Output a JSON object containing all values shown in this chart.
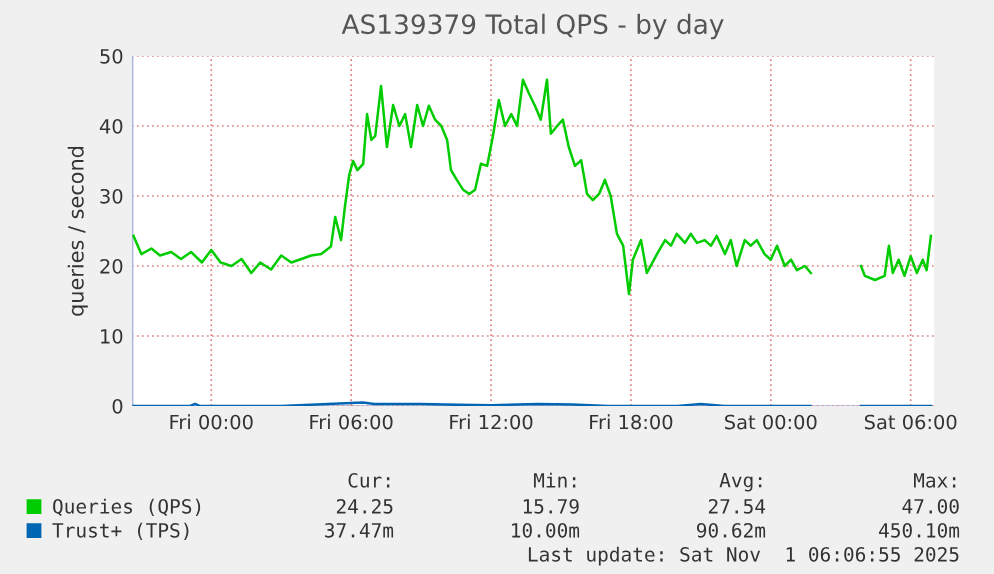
{
  "chart_data": {
    "type": "line",
    "title": "AS139379 Total QPS - by day",
    "ylabel": "queries / second",
    "xlim": [
      "2025-10-30T20:36",
      "2025-11-01T07:00"
    ],
    "xticks": [
      {
        "value": "2025-10-31T00:00",
        "label": "Fri 00:00"
      },
      {
        "value": "2025-10-31T06:00",
        "label": "Fri 06:00"
      },
      {
        "value": "2025-10-31T12:00",
        "label": "Fri 12:00"
      },
      {
        "value": "2025-10-31T18:00",
        "label": "Fri 18:00"
      },
      {
        "value": "2025-11-01T00:00",
        "label": "Sat 00:00"
      },
      {
        "value": "2025-11-01T06:00",
        "label": "Sat 06:00"
      }
    ],
    "ylim": [
      0,
      50
    ],
    "yticks": [
      0,
      10,
      20,
      30,
      40,
      50
    ],
    "grid": true,
    "legend": "bottom",
    "series": [
      {
        "name": "Queries (QPS)",
        "color": "#00cc00",
        "x": [
          "2025-10-30T20:40",
          "2025-10-30T21:00",
          "2025-10-30T21:26",
          "2025-10-30T21:48",
          "2025-10-30T22:17",
          "2025-10-30T22:42",
          "2025-10-30T23:08",
          "2025-10-30T23:36",
          "2025-10-31T00:00",
          "2025-10-31T00:24",
          "2025-10-31T00:52",
          "2025-10-31T01:18",
          "2025-10-31T01:43",
          "2025-10-31T02:06",
          "2025-10-31T02:34",
          "2025-10-31T03:00",
          "2025-10-31T03:26",
          "2025-10-31T03:52",
          "2025-10-31T04:17",
          "2025-10-31T04:43",
          "2025-10-31T05:08",
          "2025-10-31T05:19",
          "2025-10-31T05:34",
          "2025-10-31T05:44",
          "2025-10-31T05:55",
          "2025-10-31T06:05",
          "2025-10-31T06:16",
          "2025-10-31T06:31",
          "2025-10-31T06:41",
          "2025-10-31T06:52",
          "2025-10-31T07:02",
          "2025-10-31T07:17",
          "2025-10-31T07:32",
          "2025-10-31T07:48",
          "2025-10-31T08:04",
          "2025-10-31T08:19",
          "2025-10-31T08:34",
          "2025-10-31T08:50",
          "2025-10-31T09:05",
          "2025-10-31T09:20",
          "2025-10-31T09:36",
          "2025-10-31T09:52",
          "2025-10-31T10:07",
          "2025-10-31T10:17",
          "2025-10-31T10:32",
          "2025-10-31T10:48",
          "2025-10-31T11:04",
          "2025-10-31T11:19",
          "2025-10-31T11:34",
          "2025-10-31T11:50",
          "2025-10-31T12:05",
          "2025-10-31T12:20",
          "2025-10-31T12:36",
          "2025-10-31T12:52",
          "2025-10-31T13:07",
          "2025-10-31T13:22",
          "2025-10-31T13:38",
          "2025-10-31T13:53",
          "2025-10-31T14:08",
          "2025-10-31T14:24",
          "2025-10-31T14:34",
          "2025-10-31T14:50",
          "2025-10-31T15:05",
          "2025-10-31T15:20",
          "2025-10-31T15:36",
          "2025-10-31T15:52",
          "2025-10-31T16:07",
          "2025-10-31T16:22",
          "2025-10-31T16:38",
          "2025-10-31T16:53",
          "2025-10-31T17:08",
          "2025-10-31T17:24",
          "2025-10-31T17:40",
          "2025-10-31T17:55",
          "2025-10-31T18:05",
          "2025-10-31T18:26",
          "2025-10-31T18:41",
          "2025-10-31T19:07",
          "2025-10-31T19:28",
          "2025-10-31T19:43",
          "2025-10-31T19:58",
          "2025-10-31T20:19",
          "2025-10-31T20:34",
          "2025-10-31T20:50",
          "2025-10-31T21:10",
          "2025-10-31T21:26",
          "2025-10-31T21:41",
          "2025-10-31T22:02",
          "2025-10-31T22:17",
          "2025-10-31T22:32",
          "2025-10-31T22:53",
          "2025-10-31T23:08",
          "2025-10-31T23:24",
          "2025-10-31T23:44",
          "2025-11-01T00:00",
          "2025-11-01T00:16",
          "2025-11-01T00:36",
          "2025-11-01T00:52",
          "2025-11-01T01:07",
          "2025-11-01T01:28",
          "2025-11-01T01:43",
          "2025-11-01T02:30",
          "2025-11-01T03:52",
          "2025-11-01T04:02",
          "2025-11-01T04:28",
          "2025-11-01T04:53",
          "2025-11-01T05:04",
          "2025-11-01T05:14",
          "2025-11-01T05:29",
          "2025-11-01T05:44",
          "2025-11-01T06:00",
          "2025-11-01T06:16",
          "2025-11-01T06:31",
          "2025-11-01T06:41",
          "2025-11-01T06:52"
        ],
        "values": [
          24.3,
          21.7,
          22.5,
          21.5,
          22,
          21,
          22,
          20.5,
          22.3,
          20.5,
          20,
          21,
          19,
          20.5,
          19.5,
          21.5,
          20.5,
          21,
          21.5,
          21.7,
          22.8,
          27,
          23.7,
          28.5,
          33,
          35,
          33.7,
          34.6,
          41.7,
          38,
          38.6,
          45.7,
          37,
          43,
          40,
          41.7,
          37,
          43,
          40,
          42.9,
          40.9,
          40,
          38,
          33.7,
          32.3,
          30.9,
          30.3,
          30.9,
          34.6,
          34.3,
          38.6,
          43.7,
          40,
          41.7,
          40,
          46.6,
          44.6,
          42.9,
          40.9,
          46.6,
          38.9,
          40,
          40.9,
          37,
          34.3,
          35.1,
          30.3,
          29.4,
          30.3,
          32.3,
          30,
          24.6,
          22.9,
          16,
          20.9,
          23.7,
          19,
          21.7,
          23.7,
          22.9,
          24.6,
          23.3,
          24.6,
          23.3,
          23.7,
          22.9,
          24.3,
          21.7,
          23.7,
          20,
          23.7,
          22.9,
          23.7,
          21.7,
          20.9,
          22.9,
          20,
          20.9,
          19.4,
          20,
          19,
          null,
          20,
          18.6,
          18,
          18.6,
          22.9,
          19,
          20.9,
          18.6,
          21.4,
          19,
          20.9,
          19.4,
          24.3
        ]
      },
      {
        "name": "Trust+ (TPS)",
        "color": "#0066b3",
        "x": [
          "2025-10-30T20:40",
          "2025-10-30T23:06",
          "2025-10-30T23:18",
          "2025-10-30T23:30",
          "2025-10-31T03:00",
          "2025-10-31T06:30",
          "2025-10-31T07:00",
          "2025-10-31T08:00",
          "2025-10-31T09:00",
          "2025-10-31T10:00",
          "2025-10-31T12:00",
          "2025-10-31T14:00",
          "2025-10-31T15:30",
          "2025-10-31T17:00",
          "2025-10-31T20:00",
          "2025-10-31T21:00",
          "2025-10-31T22:00",
          "2025-11-01T01:42",
          "2025-11-01T02:30",
          "2025-11-01T03:52",
          "2025-11-01T06:52"
        ],
        "values": [
          0,
          0,
          0.3,
          0,
          0,
          0.5,
          0.3,
          0.3,
          0.3,
          0.2,
          0.1,
          0.3,
          0.2,
          0,
          0,
          0.3,
          0,
          0,
          null,
          0,
          0
        ]
      }
    ],
    "annotations": [
      "Cur:",
      "Min:",
      "Avg:",
      "Max:",
      "24.25",
      "15.79",
      "27.54",
      "47.00",
      "37.47m",
      "10.00m",
      "90.62m",
      "450.10m",
      "Last update: Sat Nov  1 06:06:55 2025"
    ]
  }
}
